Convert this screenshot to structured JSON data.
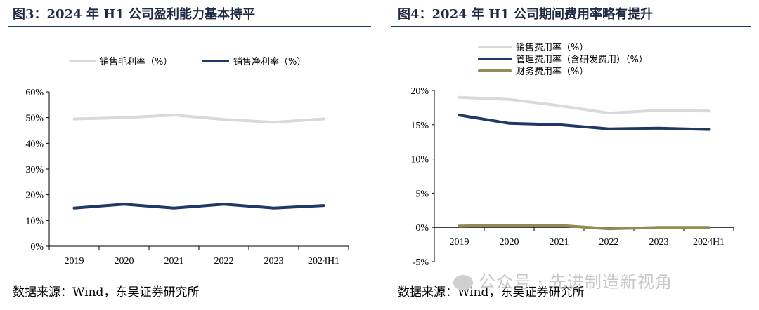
{
  "charts": [
    {
      "fig_title": "图3：2024 年 H1 公司盈利能力基本持平",
      "source": "数据来源：Wind，东吴证券研究所"
    },
    {
      "fig_title": "图4：2024 年 H1 公司期间费用率略有提升",
      "source": "数据来源：Wind，东吴证券研究所"
    }
  ],
  "watermark": "公众号 · 先进制造新视角",
  "chart_data": [
    {
      "type": "line",
      "title": "图3：2024 年 H1 公司盈利能力基本持平",
      "categories": [
        "2019",
        "2020",
        "2021",
        "2022",
        "2023",
        "2024H1"
      ],
      "y_ticks": [
        "0%",
        "10%",
        "20%",
        "30%",
        "40%",
        "50%",
        "60%"
      ],
      "ylim": [
        0,
        60
      ],
      "y_unit": "%",
      "grid": false,
      "legend_position": "top",
      "series": [
        {
          "name": "销售毛利率（%）",
          "color": "#d9d9d9",
          "values": [
            49.5,
            50.0,
            51.0,
            49.3,
            48.2,
            49.5
          ]
        },
        {
          "name": "销售净利率（%）",
          "color": "#1f3864",
          "values": [
            14.8,
            16.3,
            14.8,
            16.3,
            14.8,
            15.8
          ]
        }
      ]
    },
    {
      "type": "line",
      "title": "图4：2024 年 H1 公司期间费用率略有提升",
      "categories": [
        "2019",
        "2020",
        "2021",
        "2022",
        "2023",
        "2024H1"
      ],
      "y_ticks": [
        "-5%",
        "0%",
        "5%",
        "10%",
        "15%",
        "20%"
      ],
      "ylim": [
        -5,
        20
      ],
      "y_unit": "%",
      "grid": false,
      "legend_position": "top",
      "series": [
        {
          "name": "销售费用率（%）",
          "color": "#d9d9d9",
          "values": [
            19.0,
            18.7,
            17.8,
            16.7,
            17.1,
            17.0
          ]
        },
        {
          "name": "管理费用率（含研发费用）（%）",
          "color": "#1f3864",
          "values": [
            16.4,
            15.2,
            15.0,
            14.4,
            14.5,
            14.3
          ]
        },
        {
          "name": "财务费用率（%）",
          "color": "#948a54",
          "values": [
            0.2,
            0.3,
            0.3,
            -0.2,
            0.0,
            0.0
          ]
        }
      ]
    }
  ]
}
